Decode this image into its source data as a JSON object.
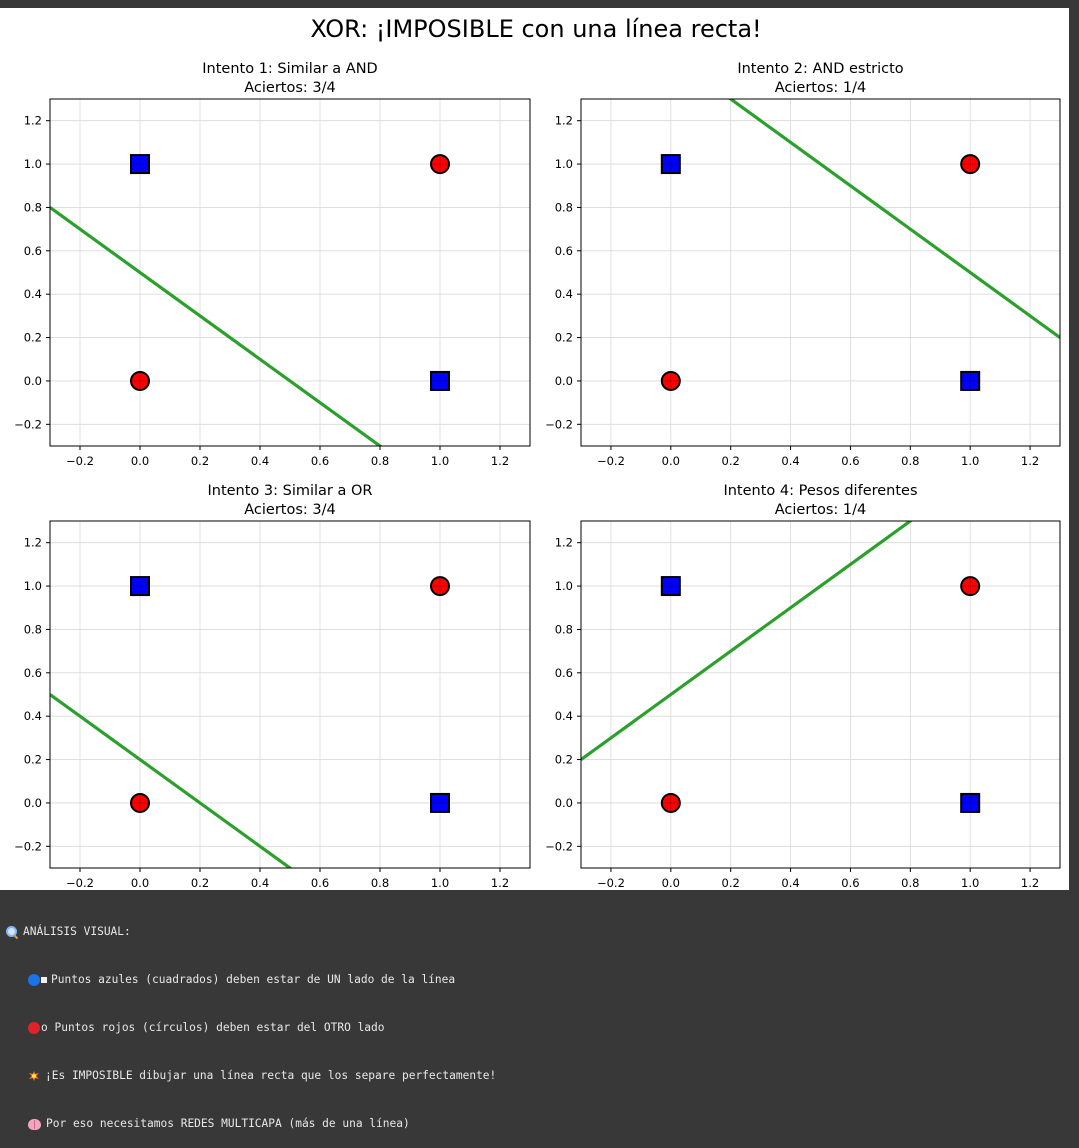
{
  "figure": {
    "title": "XOR: ¡IMPOSIBLE con una línea recta!"
  },
  "colors": {
    "class_blue": "#0000ff",
    "class_red": "#ff0000",
    "line": "#2ca02c",
    "grid": "#d9d9d9"
  },
  "chart_data": [
    {
      "type": "scatter",
      "title": "Intento 1: Similar a AND",
      "subtitle": "Aciertos: 3/4",
      "xlim": [
        -0.3,
        1.3
      ],
      "ylim": [
        -0.3,
        1.3
      ],
      "xticks": [
        -0.2,
        0.0,
        0.2,
        0.4,
        0.6,
        0.8,
        1.0,
        1.2
      ],
      "yticks": [
        -0.2,
        0.0,
        0.2,
        0.4,
        0.6,
        0.8,
        1.0,
        1.2
      ],
      "grid": true,
      "points": [
        {
          "x": 0,
          "y": 0,
          "class": "red",
          "marker": "circle"
        },
        {
          "x": 0,
          "y": 1,
          "class": "blue",
          "marker": "square"
        },
        {
          "x": 1,
          "y": 0,
          "class": "blue",
          "marker": "square"
        },
        {
          "x": 1,
          "y": 1,
          "class": "red",
          "marker": "circle"
        }
      ],
      "line": {
        "slope": -1,
        "intercept": 0.5
      }
    },
    {
      "type": "scatter",
      "title": "Intento 2: AND estricto",
      "subtitle": "Aciertos: 1/4",
      "xlim": [
        -0.3,
        1.3
      ],
      "ylim": [
        -0.3,
        1.3
      ],
      "xticks": [
        -0.2,
        0.0,
        0.2,
        0.4,
        0.6,
        0.8,
        1.0,
        1.2
      ],
      "yticks": [
        -0.2,
        0.0,
        0.2,
        0.4,
        0.6,
        0.8,
        1.0,
        1.2
      ],
      "grid": true,
      "points": [
        {
          "x": 0,
          "y": 0,
          "class": "red",
          "marker": "circle"
        },
        {
          "x": 0,
          "y": 1,
          "class": "blue",
          "marker": "square"
        },
        {
          "x": 1,
          "y": 0,
          "class": "blue",
          "marker": "square"
        },
        {
          "x": 1,
          "y": 1,
          "class": "red",
          "marker": "circle"
        }
      ],
      "line": {
        "slope": -1,
        "intercept": 1.5
      }
    },
    {
      "type": "scatter",
      "title": "Intento 3: Similar a OR",
      "subtitle": "Aciertos: 3/4",
      "xlim": [
        -0.3,
        1.3
      ],
      "ylim": [
        -0.3,
        1.3
      ],
      "xticks": [
        -0.2,
        0.0,
        0.2,
        0.4,
        0.6,
        0.8,
        1.0,
        1.2
      ],
      "yticks": [
        -0.2,
        0.0,
        0.2,
        0.4,
        0.6,
        0.8,
        1.0,
        1.2
      ],
      "grid": true,
      "points": [
        {
          "x": 0,
          "y": 0,
          "class": "red",
          "marker": "circle"
        },
        {
          "x": 0,
          "y": 1,
          "class": "blue",
          "marker": "square"
        },
        {
          "x": 1,
          "y": 0,
          "class": "blue",
          "marker": "square"
        },
        {
          "x": 1,
          "y": 1,
          "class": "red",
          "marker": "circle"
        }
      ],
      "line": {
        "slope": -1,
        "intercept": 0.2
      }
    },
    {
      "type": "scatter",
      "title": "Intento 4: Pesos diferentes",
      "subtitle": "Aciertos: 1/4",
      "xlim": [
        -0.3,
        1.3
      ],
      "ylim": [
        -0.3,
        1.3
      ],
      "xticks": [
        -0.2,
        0.0,
        0.2,
        0.4,
        0.6,
        0.8,
        1.0,
        1.2
      ],
      "yticks": [
        -0.2,
        0.0,
        0.2,
        0.4,
        0.6,
        0.8,
        1.0,
        1.2
      ],
      "grid": true,
      "points": [
        {
          "x": 0,
          "y": 0,
          "class": "red",
          "marker": "circle"
        },
        {
          "x": 0,
          "y": 1,
          "class": "blue",
          "marker": "square"
        },
        {
          "x": 1,
          "y": 0,
          "class": "blue",
          "marker": "square"
        },
        {
          "x": 1,
          "y": 1,
          "class": "red",
          "marker": "circle"
        }
      ],
      "line": {
        "slope": 1,
        "intercept": 0.5
      }
    }
  ],
  "console": {
    "header": "ANÁLISIS VISUAL:",
    "lines": [
      {
        "icon": "blue-circle-icon",
        "text": "Puntos azules (cuadrados) deben estar de UN lado de la línea"
      },
      {
        "icon": "red-circle-icon",
        "text": "o Puntos rojos (círculos) deben estar del OTRO lado"
      },
      {
        "icon": "collision-icon",
        "text": "¡Es IMPOSIBLE dibujar una línea recta que los separe perfectamente!"
      },
      {
        "icon": "brain-icon",
        "text": "Por eso necesitamos REDES MULTICAPA (más de una línea)"
      }
    ]
  }
}
